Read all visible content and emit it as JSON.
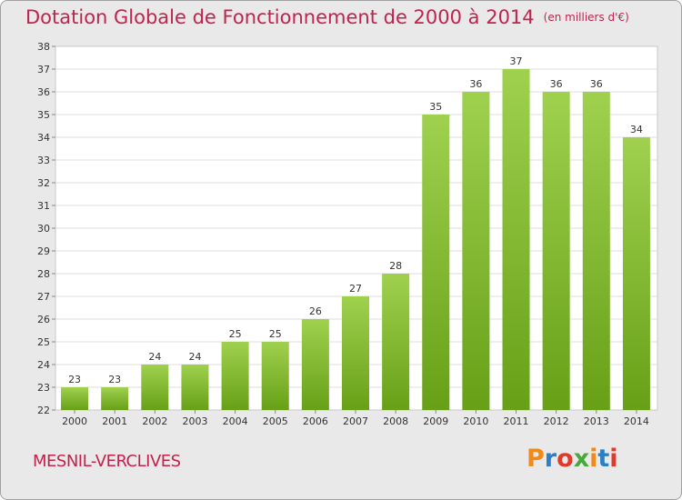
{
  "chart_data": {
    "type": "bar",
    "title": "Dotation Globale de Fonctionnement de 2000 à 2014",
    "subtitle": "(en milliers d'€)",
    "categories": [
      "2000",
      "2001",
      "2002",
      "2003",
      "2004",
      "2005",
      "2006",
      "2007",
      "2008",
      "2009",
      "2010",
      "2011",
      "2012",
      "2013",
      "2014"
    ],
    "values": [
      23,
      23,
      24,
      24,
      25,
      25,
      26,
      27,
      28,
      35,
      36,
      37,
      36,
      36,
      34
    ],
    "ylim": [
      22,
      38
    ],
    "yticks": [
      22,
      23,
      24,
      25,
      26,
      27,
      28,
      29,
      30,
      31,
      32,
      33,
      34,
      35,
      36,
      37,
      38
    ],
    "grid": true,
    "bar_color": "#8ac43a",
    "bar_color_dark": "#6aa219",
    "title_color": "#c0234d"
  },
  "footer": {
    "commune": "MESNIL-VERCLIVES",
    "logo": {
      "letters": [
        "P",
        "r",
        "o",
        "x",
        "i",
        "t",
        "i"
      ],
      "colors": [
        "#f08a1c",
        "#2b7fc4",
        "#e03a2c",
        "#4aa83a",
        "#f08a1c",
        "#2b7fc4",
        "#e03a2c"
      ]
    }
  }
}
